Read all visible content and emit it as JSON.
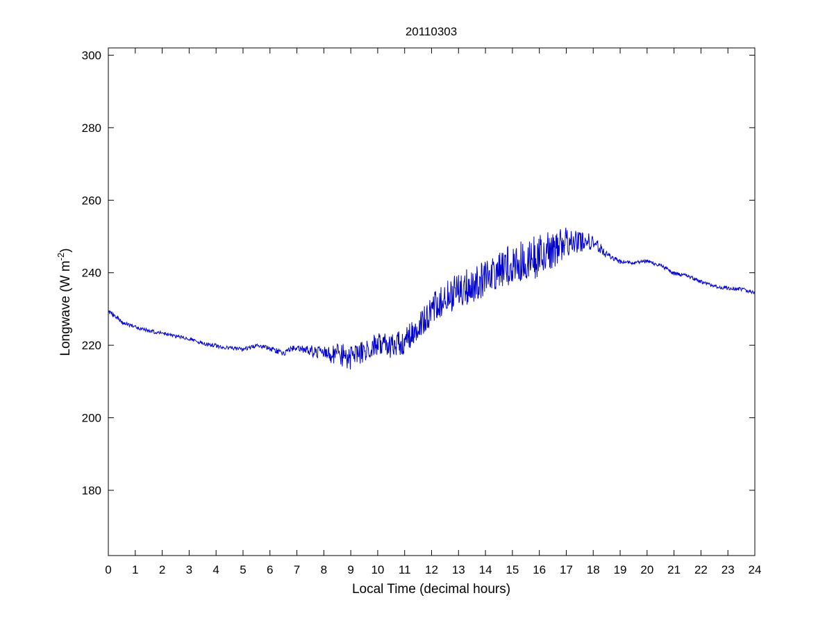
{
  "chart_data": {
    "type": "line",
    "title": "20110303",
    "xlabel": "Local Time (decimal hours)",
    "ylabel": "Longwave (W m",
    "ylabel_superscript": "-2",
    "ylabel_suffix": ")",
    "xlim": [
      0,
      24
    ],
    "ylim": [
      162,
      302
    ],
    "x_ticks": [
      0,
      1,
      2,
      3,
      4,
      5,
      6,
      7,
      8,
      9,
      10,
      11,
      12,
      13,
      14,
      15,
      16,
      17,
      18,
      19,
      20,
      21,
      22,
      23,
      24
    ],
    "y_ticks": [
      180,
      200,
      220,
      240,
      260,
      280,
      300
    ],
    "grid": false,
    "series_color": "#0000cc",
    "series": [
      {
        "x": [
          0,
          0.5,
          1,
          1.5,
          2,
          2.5,
          3,
          3.5,
          4,
          4.5,
          5,
          5.5,
          6,
          6.5,
          7,
          7.5,
          8,
          8.5,
          9,
          9.5,
          10,
          10.5,
          11,
          11.5,
          12,
          12.5,
          13,
          13.5,
          14,
          14.5,
          15,
          15.5,
          16,
          16.5,
          17,
          17.5,
          18,
          18.5,
          19,
          19.5,
          20,
          20.5,
          21,
          21.5,
          22,
          22.5,
          23,
          23.5,
          24
        ],
        "y": [
          229.5,
          226.5,
          225,
          224,
          223.3,
          222.5,
          221.8,
          220.5,
          219.8,
          219.2,
          218.8,
          219.8,
          219.2,
          217.8,
          219.5,
          218.5,
          217.5,
          217.8,
          216.5,
          218.5,
          220.5,
          219.5,
          221,
          225,
          229.5,
          232.5,
          235.5,
          236.5,
          238.5,
          240.5,
          242.5,
          244,
          244.5,
          246.5,
          248.5,
          248.5,
          248.5,
          245,
          243,
          242.8,
          243.2,
          242,
          239.8,
          239.2,
          237.5,
          236.2,
          235.8,
          235.5,
          234.5
        ],
        "noise": [
          0.6,
          0.6,
          0.5,
          0.5,
          0.5,
          0.5,
          0.5,
          0.5,
          0.6,
          0.6,
          0.6,
          0.6,
          0.7,
          0.8,
          1.0,
          1.5,
          2.2,
          3.0,
          3.5,
          3.0,
          3.0,
          3.5,
          3.5,
          3.5,
          4.5,
          5.0,
          5.0,
          5.0,
          5.0,
          5.5,
          5.5,
          6.0,
          6.0,
          5.5,
          4.0,
          3.0,
          2.0,
          1.0,
          0.6,
          0.5,
          0.5,
          0.5,
          0.5,
          0.5,
          0.5,
          0.5,
          0.5,
          0.5,
          0.5
        ]
      }
    ]
  }
}
